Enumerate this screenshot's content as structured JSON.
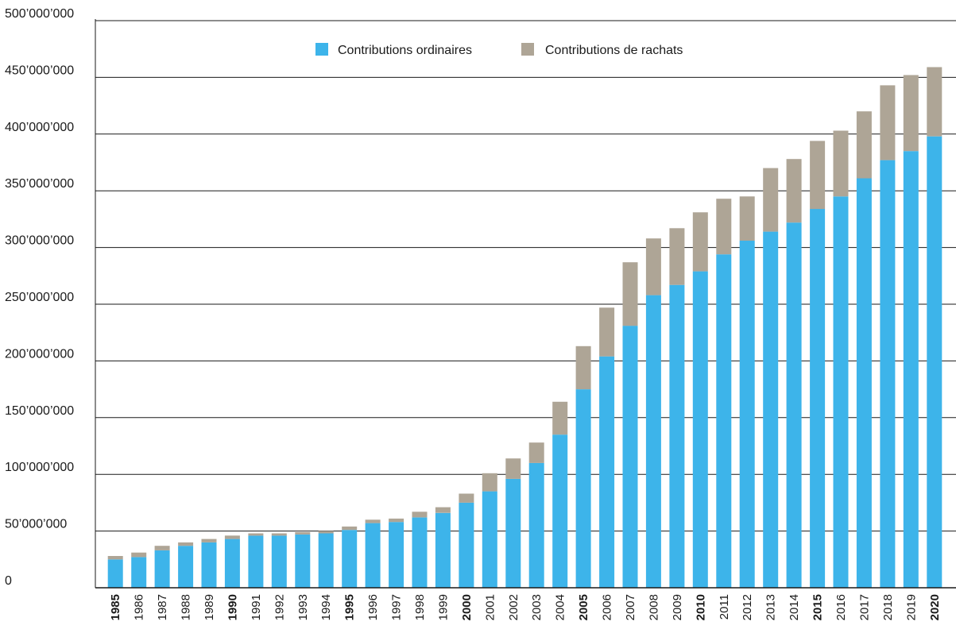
{
  "chart_data": {
    "type": "bar",
    "stacked": true,
    "title": "",
    "xlabel": "",
    "ylabel": "",
    "ylim": [
      0,
      500000000
    ],
    "y_ticks": [
      0,
      50000000,
      100000000,
      150000000,
      200000000,
      250000000,
      300000000,
      350000000,
      400000000,
      450000000,
      500000000
    ],
    "y_tick_labels": [
      "0",
      "50’000’000",
      "100’000’000",
      "150’000’000",
      "200’000’000",
      "250’000’000",
      "300’000’000",
      "350’000’000",
      "400’000’000",
      "450’000’000",
      "500’000’000"
    ],
    "grid": true,
    "legend_position": "top-center",
    "categories": [
      "1985",
      "1986",
      "1987",
      "1988",
      "1989",
      "1990",
      "1991",
      "1992",
      "1993",
      "1994",
      "1995",
      "1996",
      "1997",
      "1998",
      "1999",
      "2000",
      "2001",
      "2002",
      "2003",
      "2004",
      "2005",
      "2006",
      "2007",
      "2008",
      "2009",
      "2010",
      "2011",
      "2012",
      "2013",
      "2014",
      "2015",
      "2016",
      "2017",
      "2018",
      "2019",
      "2020"
    ],
    "bold_categories": [
      "1985",
      "1990",
      "1995",
      "2000",
      "2005",
      "2010",
      "2015",
      "2020"
    ],
    "series": [
      {
        "name": "Contributions ordinaires",
        "color": "#3db4ea",
        "values": [
          25000000,
          27000000,
          33000000,
          37000000,
          40000000,
          43000000,
          46000000,
          46000000,
          47000000,
          48000000,
          51000000,
          57000000,
          58000000,
          62000000,
          66000000,
          75000000,
          85000000,
          96000000,
          110000000,
          135000000,
          175000000,
          204000000,
          231000000,
          258000000,
          267000000,
          279000000,
          294000000,
          306000000,
          314000000,
          322000000,
          334000000,
          345000000,
          361000000,
          377000000,
          385000000,
          398000000
        ]
      },
      {
        "name": "Contributions de rachats",
        "color": "#aea596",
        "values": [
          3000000,
          4000000,
          4000000,
          3000000,
          3000000,
          3000000,
          2000000,
          2000000,
          2000000,
          2000000,
          3000000,
          3000000,
          3000000,
          5000000,
          5000000,
          8000000,
          16000000,
          18000000,
          18000000,
          29000000,
          38000000,
          43000000,
          56000000,
          50000000,
          50000000,
          52000000,
          49000000,
          39000000,
          56000000,
          56000000,
          60000000,
          58000000,
          59000000,
          66000000,
          67000000,
          61000000
        ]
      }
    ]
  }
}
